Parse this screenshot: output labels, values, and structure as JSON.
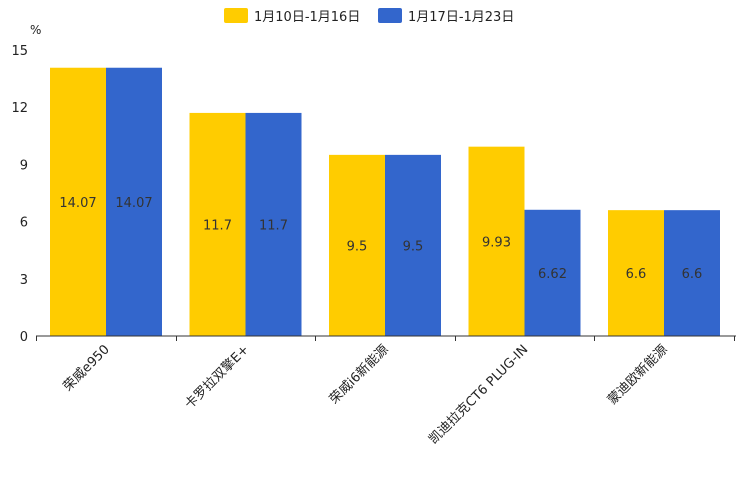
{
  "chart_data": {
    "type": "bar",
    "unit": "%",
    "ylim": [
      0,
      15
    ],
    "yticks": [
      0,
      3,
      6,
      9,
      12,
      15
    ],
    "grid": false,
    "legend_position": "top-center",
    "categories": [
      "荣威e950",
      "卡罗拉双擎E+",
      "荣威i6新能源",
      "凯迪拉克CT6 PLUG-IN",
      "蒙迪欧新能源"
    ],
    "series": [
      {
        "name": "1月10日-1月16日",
        "color": "#FFCC00",
        "values": [
          14.07,
          11.7,
          9.5,
          9.93,
          6.6
        ],
        "labels": [
          "14.07",
          "11.7",
          "9.5",
          "9.93",
          "6.6"
        ]
      },
      {
        "name": "1月17日-1月23日",
        "color": "#3366CC",
        "values": [
          14.07,
          11.7,
          9.5,
          6.62,
          6.6
        ],
        "labels": [
          "14.07",
          "11.7",
          "9.5",
          "6.62",
          "6.6"
        ]
      }
    ]
  }
}
